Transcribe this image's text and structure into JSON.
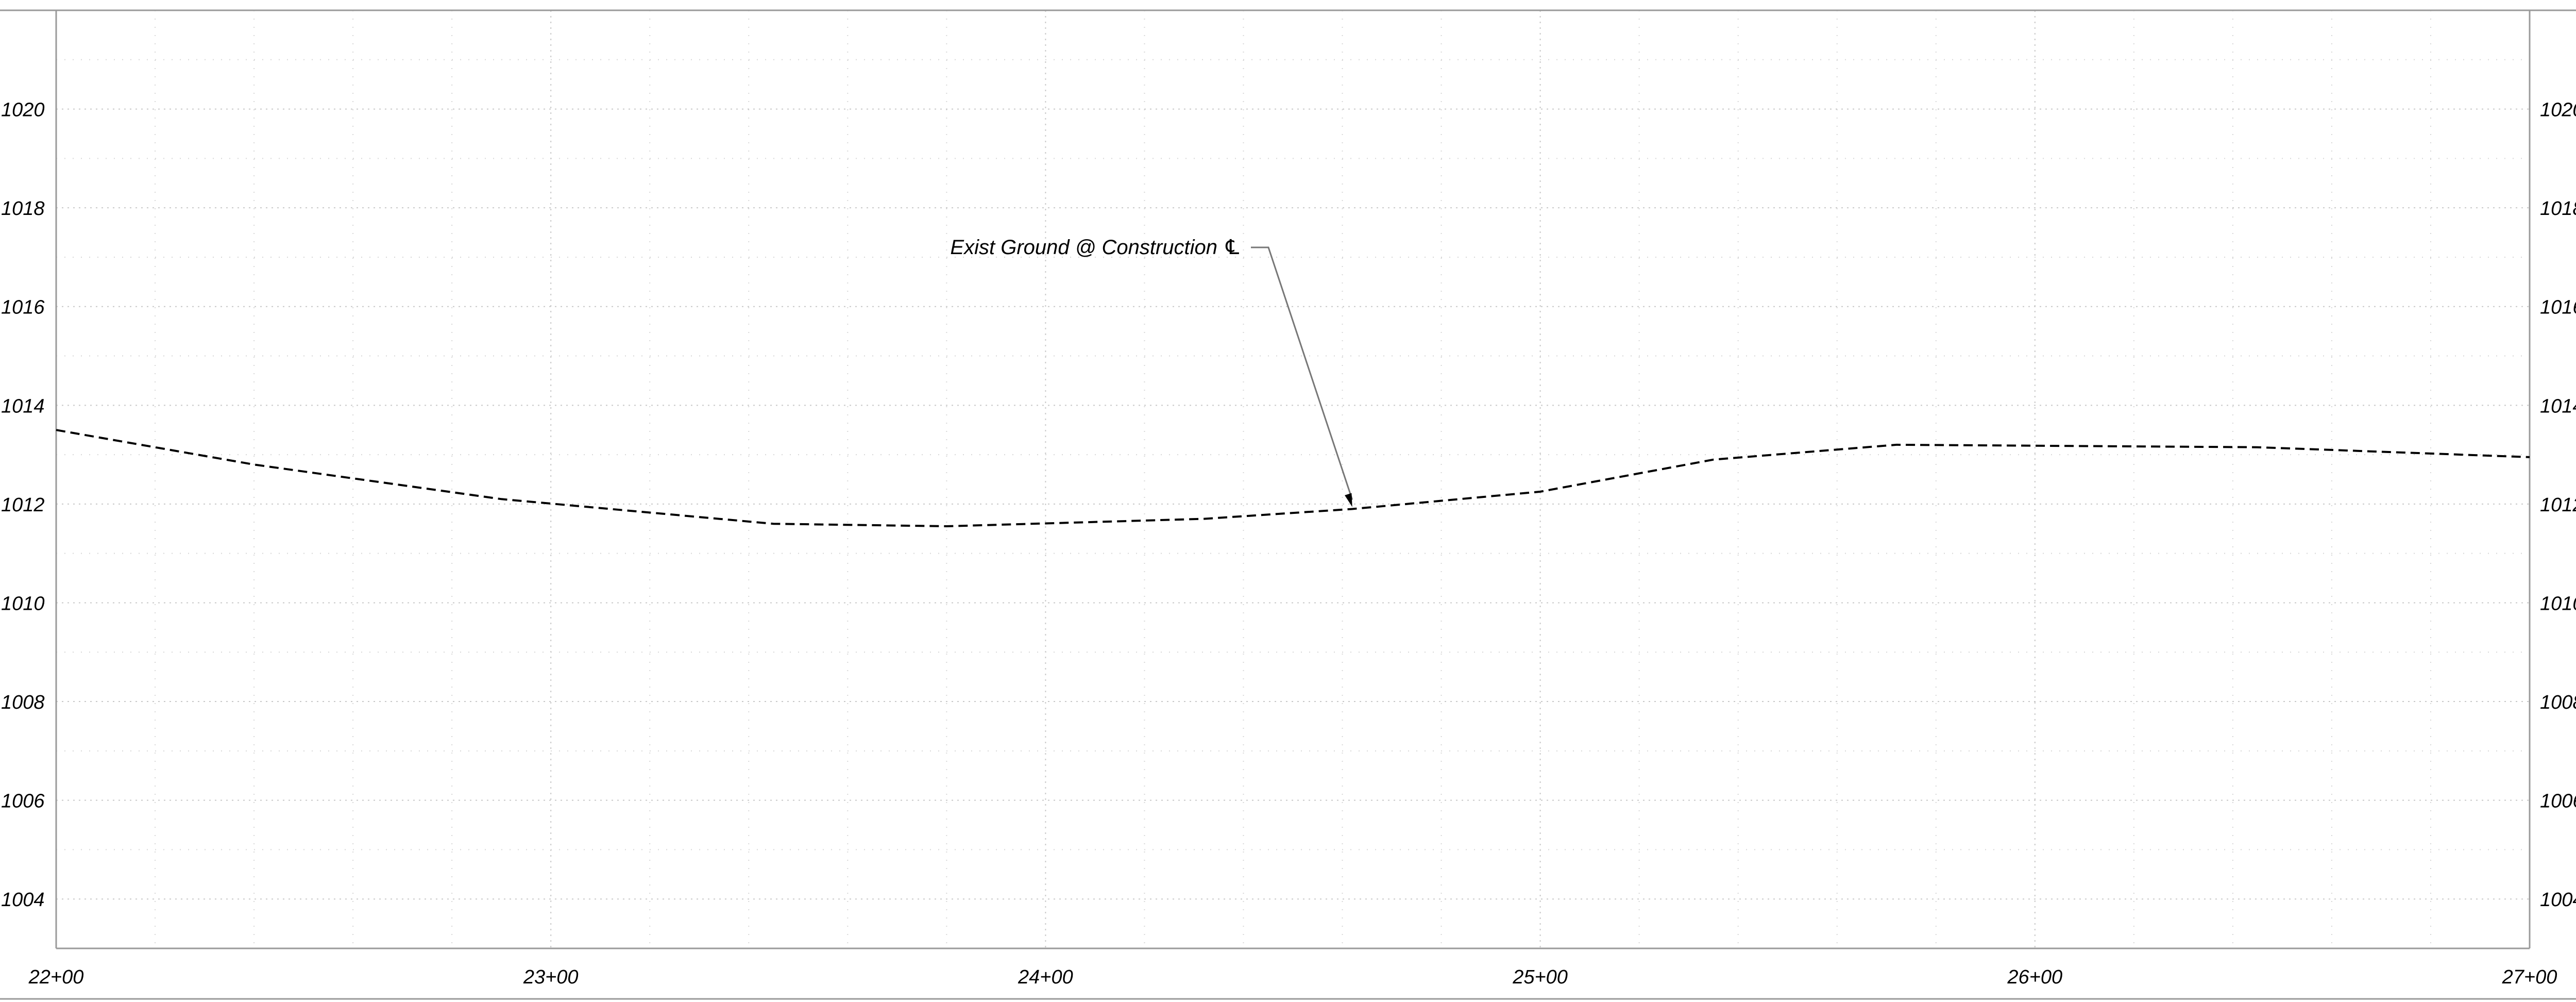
{
  "chart_data": {
    "type": "line",
    "title": "",
    "xlabel": "",
    "ylabel": "",
    "xlim": [
      2200,
      2700
    ],
    "ylim": [
      1003,
      1022
    ],
    "x_ticks": [
      {
        "value": 2200,
        "label": "22+00"
      },
      {
        "value": 2300,
        "label": "23+00"
      },
      {
        "value": 2400,
        "label": "24+00"
      },
      {
        "value": 2500,
        "label": "25+00"
      },
      {
        "value": 2600,
        "label": "26+00"
      },
      {
        "value": 2700,
        "label": "27+00"
      }
    ],
    "y_ticks": [
      {
        "value": 1004,
        "label": "1004"
      },
      {
        "value": 1006,
        "label": "1006"
      },
      {
        "value": 1008,
        "label": "1008"
      },
      {
        "value": 1010,
        "label": "1010"
      },
      {
        "value": 1012,
        "label": "1012"
      },
      {
        "value": 1014,
        "label": "1014"
      },
      {
        "value": 1016,
        "label": "1016"
      },
      {
        "value": 1018,
        "label": "1018"
      },
      {
        "value": 1020,
        "label": "1020"
      }
    ],
    "grid": true,
    "series": [
      {
        "name": "",
        "line_style": "dashed",
        "color": "#000000",
        "x": [
          2200,
          2240,
          2290,
          2345,
          2380,
          2432,
          2462,
          2500,
          2535,
          2572,
          2645,
          2700
        ],
        "y": [
          1013.5,
          1012.8,
          1012.1,
          1011.6,
          1011.55,
          1011.7,
          1011.9,
          1012.25,
          1012.9,
          1013.2,
          1013.15,
          1012.95
        ]
      }
    ],
    "annotations": [
      {
        "text": "Exist Ground @ Construction ℄",
        "target_x": 2462,
        "target_y": 1011.9
      }
    ]
  }
}
